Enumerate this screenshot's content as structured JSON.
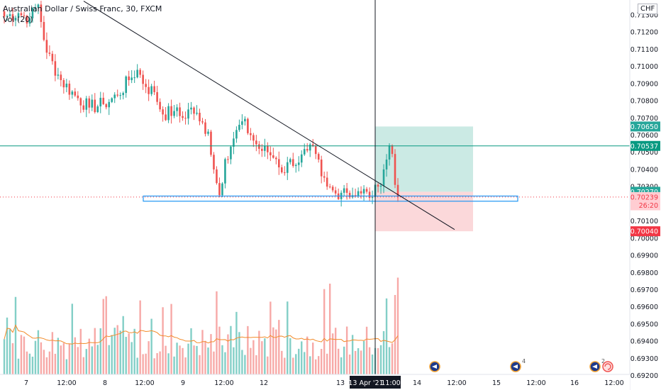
{
  "legend": {
    "symbol_line": "Australian Dollar / Swiss Franc, 30, FXCM",
    "volume_line": "Vol (20)"
  },
  "currency": "CHF",
  "price_axis": {
    "ticks": [
      "0.71300",
      "0.71200",
      "0.71100",
      "0.71000",
      "0.70900",
      "0.70800",
      "0.70700",
      "0.70600",
      "0.70500",
      "0.70400",
      "0.70300",
      "0.70100",
      "0.70000",
      "0.69900",
      "0.69800",
      "0.69700",
      "0.69600",
      "0.69500",
      "0.69400",
      "0.69300",
      "0.69200"
    ]
  },
  "price_tags": [
    {
      "label": "0.70650",
      "bg": "#26a69a",
      "fg": "#ffffff",
      "price": 0.7065
    },
    {
      "label": "0.70537",
      "bg": "#089981",
      "fg": "#ffffff",
      "price": 0.70537
    },
    {
      "label": "0.70270",
      "bg": "#26a69a",
      "fg": "#ffffff",
      "price": 0.7027
    },
    {
      "label": "0.70239",
      "bg": "#ffcdd2",
      "fg": "#f23645",
      "price": 0.70239
    },
    {
      "label": "26:20",
      "bg": "#ffcdd2",
      "fg": "#f23645",
      "price": 0.70191
    },
    {
      "label": "0.70040",
      "bg": "#f23645",
      "fg": "#ffffff",
      "price": 0.7004
    }
  ],
  "time_axis": {
    "ticks": [
      "7",
      "12:00",
      "8",
      "12:00",
      "9",
      "12:00",
      "12",
      "13",
      "14",
      "12:00",
      "15",
      "12:00",
      "16",
      "12:00"
    ],
    "crosshair_date": "13 Apr '21",
    "crosshair_time": "11:00"
  },
  "event_badges": [
    "",
    "4",
    "2"
  ],
  "colors": {
    "up": "#26a69a",
    "down": "#ef5350",
    "up_volume": "#83cfc7",
    "down_volume": "#f7a9a7",
    "volume_ma": "#f28b2a",
    "trendline": "#131722",
    "resistance_line": "#089981",
    "zone_box": "#2196f3",
    "target_zone": "#c5e8e1",
    "stop_zone": "#fbd4d6"
  },
  "chart_data": {
    "type": "candlestick",
    "symbol": "AUDCHF",
    "timeframe": "30",
    "exchange": "FXCM",
    "y_range": [
      0.6919,
      0.7137
    ],
    "last_price": 0.70239,
    "countdown": "26:20",
    "horizontal_lines": [
      0.70537
    ],
    "support_zone": [
      0.70215,
      0.70245
    ],
    "long_position": {
      "entry": 0.7027,
      "target": 0.7065,
      "stop": 0.7004
    },
    "trendline": [
      {
        "x_frac": 0.0,
        "price": 0.7138
      },
      {
        "x_frac": 1.0,
        "price": 0.7005
      }
    ],
    "candle_count": 140,
    "close_anchors": [
      [
        0,
        0.7129
      ],
      [
        5,
        0.7131
      ],
      [
        9,
        0.7128
      ],
      [
        12,
        0.7136
      ],
      [
        15,
        0.7108
      ],
      [
        20,
        0.7092
      ],
      [
        25,
        0.7083
      ],
      [
        30,
        0.7076
      ],
      [
        35,
        0.7078
      ],
      [
        40,
        0.7083
      ],
      [
        44,
        0.7092
      ],
      [
        47,
        0.7098
      ],
      [
        50,
        0.7088
      ],
      [
        53,
        0.7085
      ],
      [
        56,
        0.7072
      ],
      [
        60,
        0.7074
      ],
      [
        63,
        0.707
      ],
      [
        66,
        0.7076
      ],
      [
        69,
        0.7068
      ],
      [
        72,
        0.7062
      ],
      [
        74,
        0.704
      ],
      [
        76,
        0.7025
      ],
      [
        78,
        0.7046
      ],
      [
        81,
        0.7058
      ],
      [
        84,
        0.7068
      ],
      [
        87,
        0.706
      ],
      [
        90,
        0.7052
      ],
      [
        93,
        0.705
      ],
      [
        96,
        0.7046
      ],
      [
        99,
        0.7038
      ],
      [
        101,
        0.7046
      ],
      [
        104,
        0.7044
      ],
      [
        107,
        0.7051
      ],
      [
        110,
        0.7049
      ],
      [
        112,
        0.7036
      ],
      [
        114,
        0.703
      ],
      [
        117,
        0.7026
      ],
      [
        120,
        0.7029
      ],
      [
        123,
        0.7025
      ],
      [
        126,
        0.7026
      ],
      [
        128,
        0.7027
      ],
      [
        130,
        0.7024
      ],
      [
        132,
        0.703
      ],
      [
        134,
        0.704
      ],
      [
        136,
        0.7054
      ],
      [
        137,
        0.7049
      ],
      [
        138,
        0.7031
      ],
      [
        139,
        0.70239
      ]
    ],
    "volume_range": [
      0,
      200
    ]
  }
}
